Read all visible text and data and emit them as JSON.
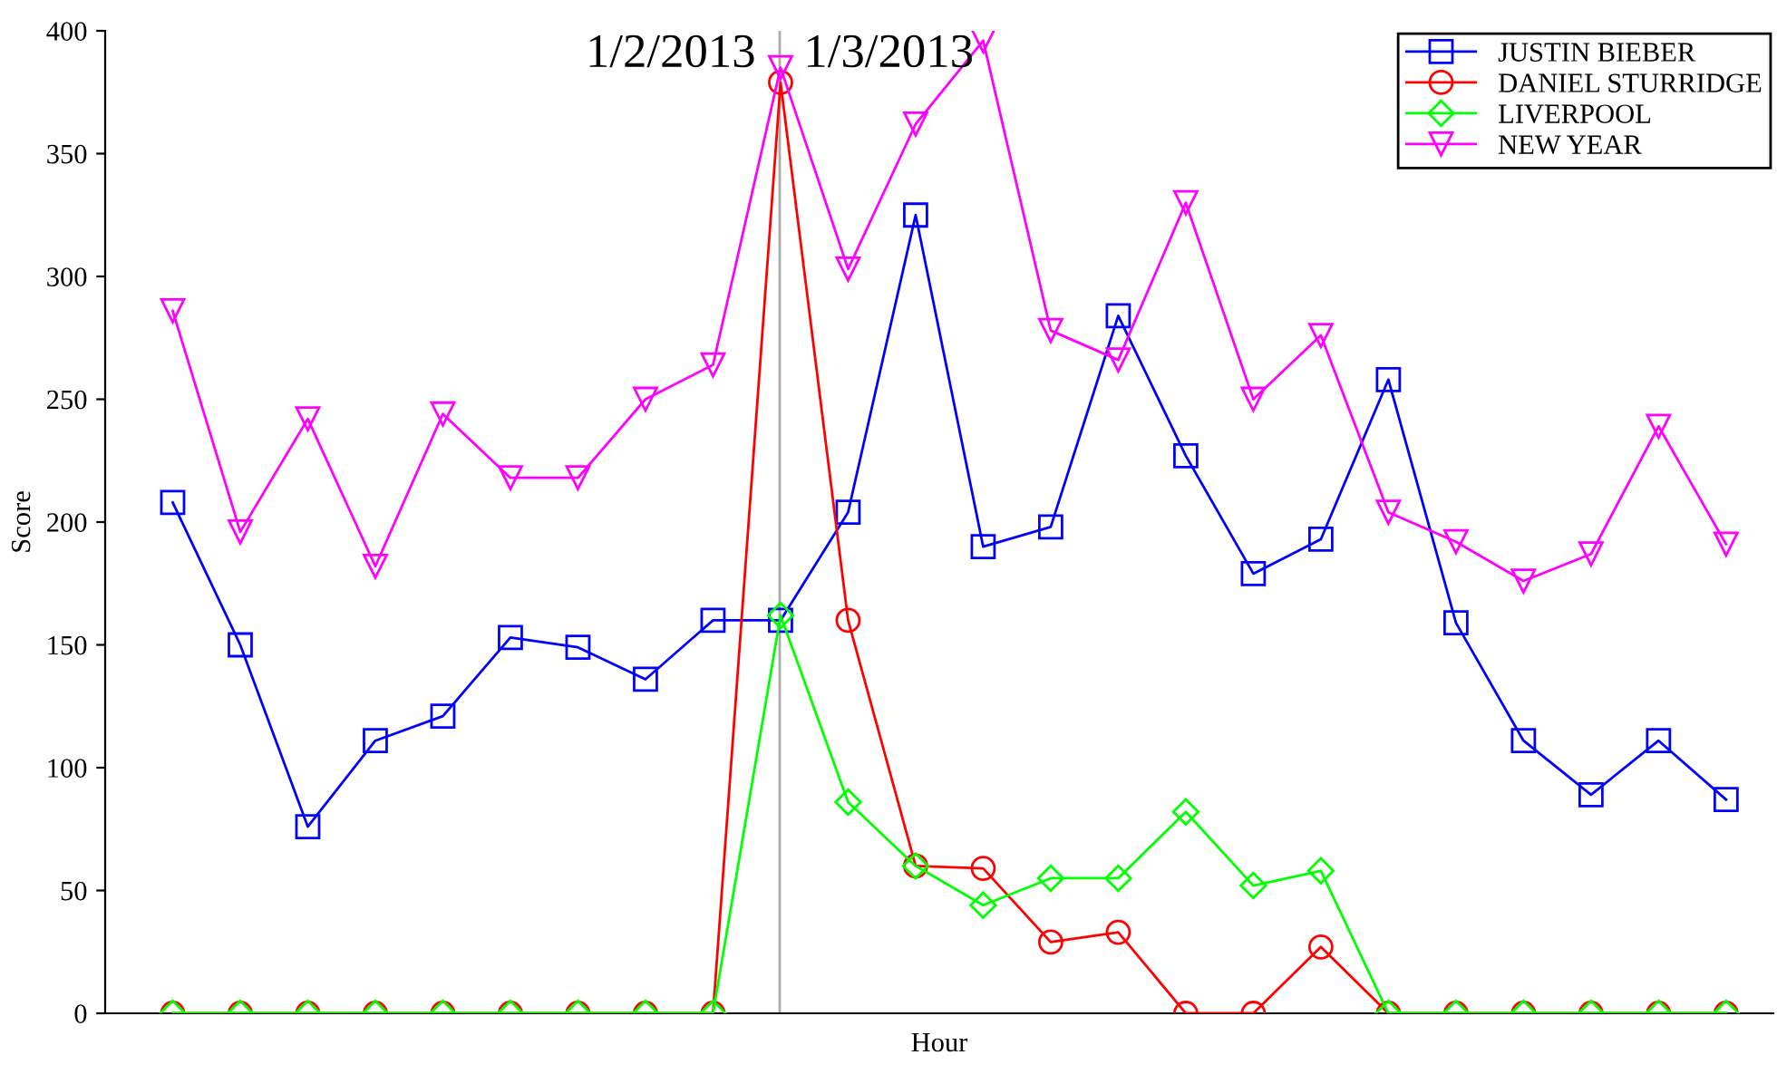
{
  "chart_data": {
    "type": "line",
    "xlabel": "Hour",
    "ylabel": "Score",
    "categories": [
      null,
      null,
      null,
      null,
      null,
      null,
      null,
      null,
      null,
      null,
      null,
      null,
      null,
      null,
      null,
      null,
      null,
      null,
      null,
      null,
      null,
      null,
      null,
      null
    ],
    "ylim": [
      0,
      400
    ],
    "yticks": [
      0,
      50,
      100,
      150,
      200,
      250,
      300,
      350,
      400
    ],
    "tick_labels": "y",
    "grid": false,
    "legend": "top right",
    "line_style": "solid",
    "annotations": [
      "1/2/2013",
      "1/3/2013"
    ],
    "series": [
      {
        "name": "JUSTIN BIEBER",
        "color": "#0000ff",
        "marker": "square",
        "values": [
          208,
          150,
          76,
          111,
          121,
          153,
          149,
          136,
          160,
          160,
          204,
          325,
          190,
          198,
          284,
          227,
          179,
          193,
          258,
          159,
          111,
          89,
          111,
          87
        ]
      },
      {
        "name": "DANIEL STURRIDGE",
        "color": "#ff0000",
        "marker": "circle",
        "values": [
          0,
          0,
          0,
          0,
          0,
          0,
          0,
          0,
          0,
          379,
          160,
          60,
          59,
          29,
          33,
          0,
          0,
          27,
          0,
          0,
          0,
          0,
          0,
          0
        ]
      },
      {
        "name": "LIVERPOOL",
        "color": "#00ff00",
        "marker": "diamond",
        "values": [
          0,
          0,
          0,
          0,
          0,
          0,
          0,
          0,
          0,
          162,
          86,
          60,
          44,
          55,
          55,
          82,
          52,
          58,
          0,
          0,
          0,
          0,
          0,
          0
        ]
      },
      {
        "name": "NEW YEAR",
        "color": "#ff00ff",
        "marker": "triangle",
        "values": [
          286,
          196,
          242,
          182,
          244,
          218,
          218,
          250,
          264,
          385,
          303,
          362,
          396,
          278,
          266,
          330,
          250,
          276,
          204,
          192,
          176,
          187,
          239,
          191
        ]
      }
    ]
  }
}
